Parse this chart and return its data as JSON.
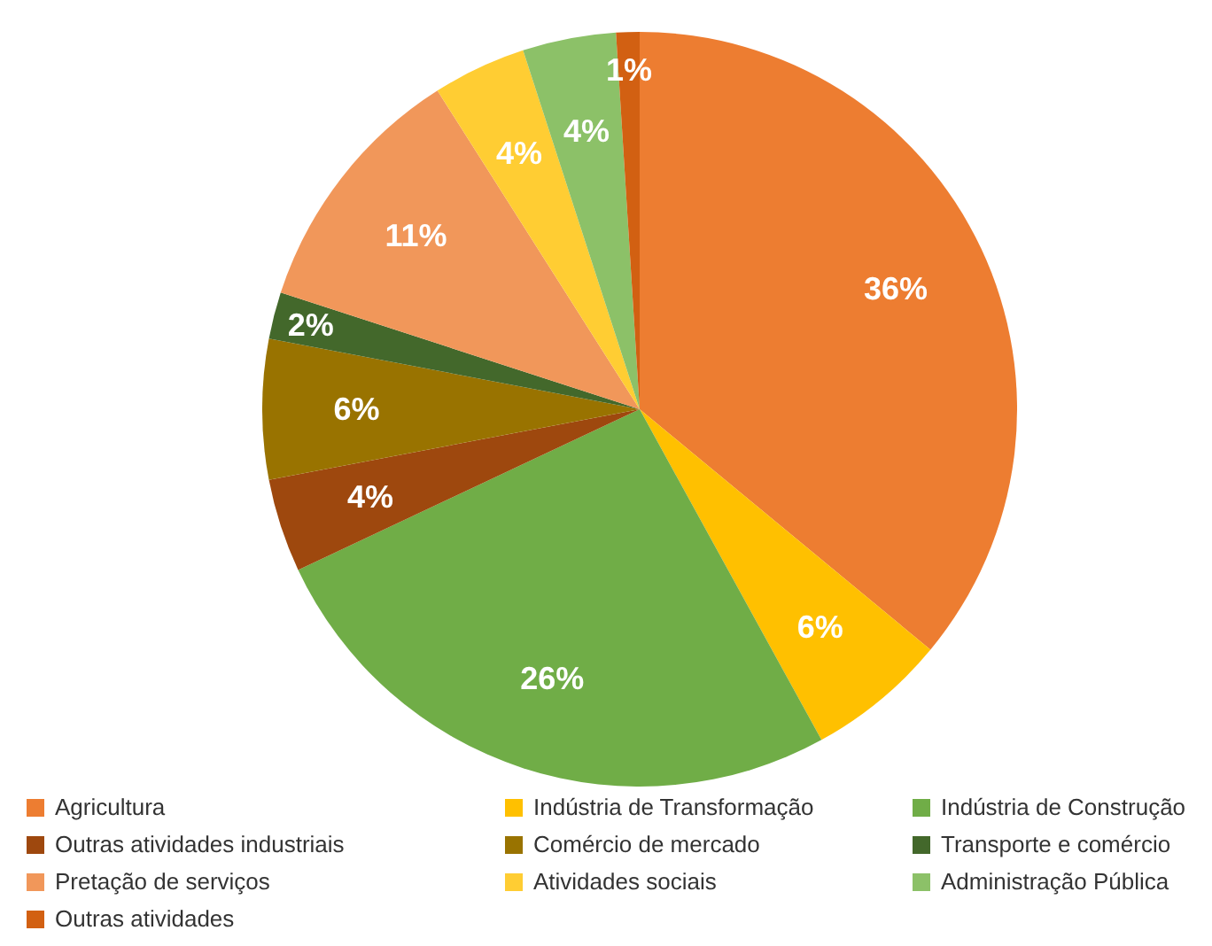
{
  "chart_data": {
    "type": "pie",
    "categories": [
      "Agricultura",
      "Indústria de Transformação",
      "Indústria de Construção",
      "Outras atividades industriais",
      "Comércio de mercado",
      "Transporte e comércio",
      "Pretação de serviços",
      "Atividades sociais",
      "Administração Pública",
      "Outras atividades"
    ],
    "values": [
      36,
      6,
      26,
      4,
      6,
      2,
      11,
      4,
      4,
      1
    ],
    "colors": [
      "#ed7d31",
      "#ffc000",
      "#70ad47",
      "#9e480e",
      "#997300",
      "#43682b",
      "#f1975a",
      "#ffcd33",
      "#8cc168",
      "#d26012"
    ],
    "value_labels": [
      "36%",
      "6%",
      "26%",
      "4%",
      "6%",
      "2%",
      "11%",
      "4%",
      "4%",
      "1%"
    ],
    "legend": "bottom"
  }
}
